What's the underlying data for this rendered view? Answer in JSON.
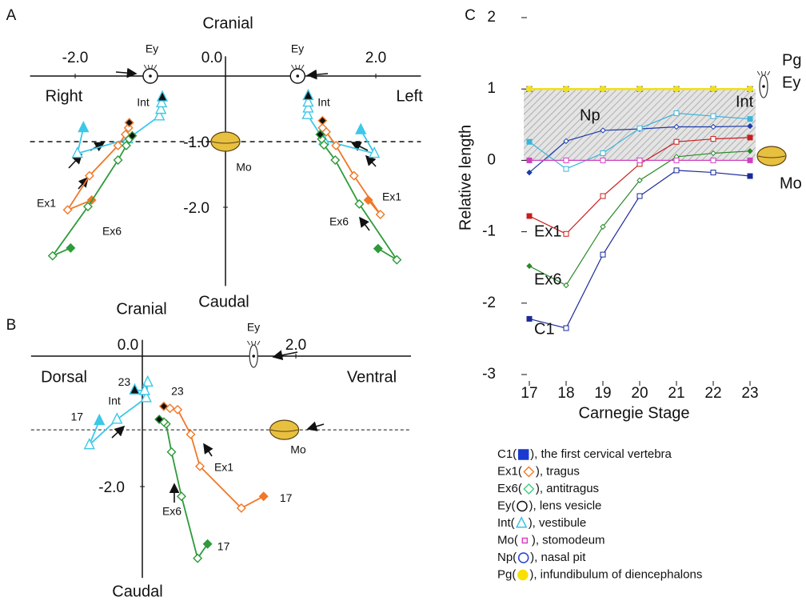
{
  "chart_data": [
    {
      "type": "trajectory",
      "panel": "A",
      "top_label": "Cranial",
      "bottom_label": "Caudal",
      "left_label": "Right",
      "right_label": "Left",
      "xlim": [
        -2.6,
        2.6
      ],
      "ylim": [
        -3.2,
        0.3
      ],
      "xticks": [
        {
          "value": -2,
          "label": "-2.0"
        },
        {
          "value": 0,
          "label": "0.0"
        },
        {
          "value": 2,
          "label": "2.0"
        }
      ],
      "yticks": [
        {
          "value": -1,
          "label": "-1.0"
        },
        {
          "value": -2,
          "label": "-2.0"
        }
      ],
      "reference_line": -1,
      "landmarks": [
        {
          "name": "Ey",
          "x": -1.0,
          "y": 0
        },
        {
          "name": "Ey",
          "x": 0.96,
          "y": 0
        },
        {
          "name": "Mo",
          "x": 0,
          "y": -1.0
        }
      ],
      "series": [
        {
          "name": "Int",
          "color": "#3cc8e8",
          "marker": "triangle",
          "x": [
            -1.89,
            -1.97,
            -1.3,
            -0.88,
            -0.86,
            -0.85,
            -0.84
          ],
          "y": [
            -0.79,
            -1.18,
            -0.96,
            -0.61,
            -0.51,
            -0.41,
            -0.32
          ]
        },
        {
          "name": "Int",
          "color": "#3cc8e8",
          "marker": "triangle",
          "x": [
            1.8,
            1.98,
            1.31,
            1.09,
            1.1,
            1.1,
            1.1
          ],
          "y": [
            -0.82,
            -1.18,
            -0.98,
            -0.59,
            -0.49,
            -0.4,
            -0.3
          ]
        },
        {
          "name": "Ex1",
          "color": "#f07828",
          "marker": "diamond",
          "x": [
            -1.78,
            -2.1,
            -1.81,
            -1.43,
            -1.33,
            -1.29,
            -1.28
          ],
          "y": [
            -1.89,
            -2.04,
            -1.52,
            -1.06,
            -0.89,
            -0.79,
            -0.71
          ]
        },
        {
          "name": "Ex1",
          "color": "#f07828",
          "marker": "diamond",
          "x": [
            1.9,
            2.06,
            1.71,
            1.47,
            1.34,
            1.29,
            1.29
          ],
          "y": [
            -1.89,
            -2.11,
            -1.52,
            -1.06,
            -0.85,
            -0.79,
            -0.68
          ]
        },
        {
          "name": "Ex6",
          "color": "#2e9a3a",
          "marker": "diamond",
          "x": [
            -2.06,
            -2.3,
            -1.83,
            -1.43,
            -1.32,
            -1.28,
            -1.24
          ],
          "y": [
            -2.62,
            -2.74,
            -1.99,
            -1.28,
            -1.06,
            -0.96,
            -0.91
          ]
        },
        {
          "name": "Ex6",
          "color": "#2e9a3a",
          "marker": "diamond",
          "x": [
            2.03,
            2.28,
            1.78,
            1.46,
            1.31,
            1.28,
            1.26
          ],
          "y": [
            -2.63,
            -2.8,
            -1.95,
            -1.28,
            -1.05,
            -0.96,
            -0.89
          ]
        }
      ]
    },
    {
      "type": "trajectory",
      "panel": "B",
      "top_label": "Cranial",
      "bottom_label": "Caudal",
      "left_label": "Dorsal",
      "right_label": "Ventral",
      "xlim": [
        -1.45,
        3.5
      ],
      "ylim": [
        -3.4,
        0.25
      ],
      "xticks": [
        {
          "value": 0,
          "label": "0.0"
        },
        {
          "value": 2,
          "label": "2.0"
        }
      ],
      "yticks": [
        {
          "value": -2,
          "label": "-2.0"
        }
      ],
      "reference_line": -1.13,
      "landmarks": [
        {
          "name": "Ey",
          "x": 1.45,
          "y": 0
        },
        {
          "name": "Mo",
          "x": 1.85,
          "y": -1.13
        }
      ],
      "series": [
        {
          "name": "Int",
          "color": "#3cc8e8",
          "marker": "triangle",
          "x": [
            -0.56,
            -0.69,
            -0.33,
            0.05,
            0.07,
            0.03,
            -0.1
          ],
          "y": [
            -0.99,
            -1.36,
            -0.97,
            -0.64,
            -0.4,
            -0.53,
            -0.52
          ],
          "point_labels": [
            "17",
            null,
            null,
            null,
            null,
            null,
            "23"
          ]
        },
        {
          "name": "Ex1",
          "color": "#f07828",
          "marker": "diamond",
          "x": [
            1.58,
            1.29,
            0.75,
            0.63,
            0.46,
            0.36,
            0.28
          ],
          "y": [
            -2.15,
            -2.33,
            -1.69,
            -1.2,
            -0.82,
            -0.8,
            -0.77
          ],
          "point_labels": [
            "17",
            null,
            null,
            null,
            null,
            null,
            "23"
          ]
        },
        {
          "name": "Ex6",
          "color": "#2e9a3a",
          "marker": "diamond",
          "x": [
            0.85,
            0.72,
            0.51,
            0.38,
            0.31,
            0.28,
            0.22
          ],
          "y": [
            -2.88,
            -3.1,
            -2.15,
            -1.47,
            -1.04,
            -1.01,
            -0.97
          ],
          "point_labels": [
            "17",
            null,
            null,
            null,
            null,
            null,
            null
          ]
        }
      ]
    },
    {
      "type": "line",
      "panel": "C",
      "x_label": "Carnegie Stage",
      "y_label": "Relative length",
      "categories": [
        "17",
        "18",
        "19",
        "20",
        "21",
        "22",
        "23"
      ],
      "ylim": [
        -3,
        2
      ],
      "yticks": [
        -3,
        -2,
        -1,
        0,
        1,
        2
      ],
      "band": [
        0,
        1
      ],
      "series": [
        {
          "name": "C1",
          "color": "#1a2a9a",
          "marker": "square",
          "values": [
            -2.22,
            -2.35,
            -1.32,
            -0.5,
            -0.14,
            -0.17,
            -0.22
          ]
        },
        {
          "name": "Ex6",
          "color": "#2a8a2a",
          "marker": "diamond",
          "values": [
            -1.48,
            -1.75,
            -0.93,
            -0.28,
            0.05,
            0.1,
            0.13
          ]
        },
        {
          "name": "Ex1",
          "color": "#c81e1e",
          "marker": "square",
          "values": [
            -0.78,
            -1.03,
            -0.5,
            -0.05,
            0.26,
            0.3,
            0.32
          ]
        },
        {
          "name": "Np",
          "color": "#1a3aa8",
          "marker": "diamond",
          "values": [
            -0.17,
            0.27,
            0.42,
            0.44,
            0.47,
            0.47,
            0.48
          ]
        },
        {
          "name": "Int",
          "color": "#3ab4dc",
          "marker": "square",
          "values": [
            0.26,
            -0.12,
            0.1,
            0.45,
            0.66,
            0.62,
            0.58
          ]
        },
        {
          "name": "Mo",
          "color": "#d040c0",
          "marker": "square",
          "values": [
            0,
            0,
            0,
            0,
            0,
            0,
            0
          ]
        },
        {
          "name": "Ey",
          "color": "#111111",
          "marker": "square",
          "values": [
            1,
            1,
            1,
            1,
            1,
            1,
            1
          ]
        },
        {
          "name": "Pg",
          "color": "#f0e020",
          "marker": "circle",
          "values": [
            1,
            1,
            1,
            1,
            1,
            1,
            1
          ]
        }
      ],
      "legend": [
        {
          "prefix": "C1(",
          "suffix": "), the first cervical vertebra",
          "color": "#1a3ad0",
          "symbol": "square",
          "filled": true
        },
        {
          "prefix": "Ex1(",
          "suffix": "), tragus",
          "color": "#f08030",
          "symbol": "diamond",
          "filled": false
        },
        {
          "prefix": "Ex6(",
          "suffix": "), antitragus",
          "color": "#40d080",
          "symbol": "diamond",
          "filled": false
        },
        {
          "prefix": "Ey(",
          "suffix": "), lens vesicle",
          "color": "#111111",
          "symbol": "circle",
          "filled": false
        },
        {
          "prefix": "Int(",
          "suffix": "), vestibule",
          "color": "#40c0e0",
          "symbol": "triangle",
          "filled": false
        },
        {
          "prefix": "Mo(",
          "suffix": "), stomodeum",
          "color": "#e040c0",
          "symbol": "smallsquare",
          "filled": false
        },
        {
          "prefix": "Np(",
          "suffix": "), nasal pit",
          "color": "#2040d0",
          "symbol": "circle",
          "filled": false
        },
        {
          "prefix": "Pg(",
          "suffix": "), infundibulum of diencephalons",
          "color": "#f8e000",
          "symbol": "circle",
          "filled": true
        }
      ]
    }
  ]
}
